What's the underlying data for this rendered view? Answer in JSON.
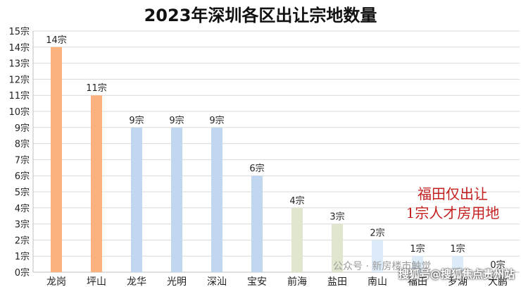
{
  "chart_data": {
    "type": "bar",
    "title": "2023年深圳各区出让宗地数量",
    "categories": [
      "龙岗",
      "坪山",
      "龙华",
      "光明",
      "深汕",
      "宝安",
      "前海",
      "盐田",
      "南山",
      "福田",
      "罗湖",
      "大鹏"
    ],
    "values": [
      14,
      11,
      9,
      9,
      9,
      6,
      4,
      3,
      2,
      1,
      1,
      0
    ],
    "value_labels": [
      "14宗",
      "11宗",
      "9宗",
      "9宗",
      "9宗",
      "6宗",
      "4宗",
      "3宗",
      "2宗",
      "1宗",
      "1宗",
      "0宗"
    ],
    "bar_colors": [
      "#fbb27f",
      "#fbb27f",
      "#c1d7ef",
      "#c1d7ef",
      "#c1d7ef",
      "#c1d7ef",
      "#dfe6cd",
      "#dfe6cd",
      "#dcebf7",
      "#dcebf7",
      "#dcebf7",
      "#dcebf7"
    ],
    "y_ticks": [
      "0宗",
      "1宗",
      "2宗",
      "3宗",
      "4宗",
      "5宗",
      "6宗",
      "7宗",
      "8宗",
      "9宗",
      "10宗",
      "11宗",
      "12宗",
      "13宗",
      "14宗",
      "15宗"
    ],
    "ylim": [
      0,
      15
    ],
    "grid": true,
    "legend": "none"
  },
  "annotation": {
    "line1": "福田仅出让",
    "line2": "1宗人才房用地"
  },
  "watermarks": {
    "wm1": "公众号 · 新房楼市触觉",
    "wm2": "搜狐号@搜狐焦点贵州站"
  }
}
